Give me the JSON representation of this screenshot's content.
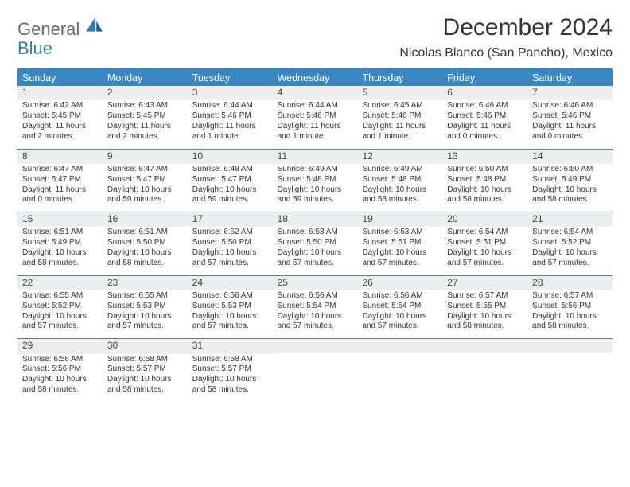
{
  "logo": {
    "word1": "General",
    "word2": "Blue"
  },
  "header": {
    "title": "December 2024",
    "location": "Nicolas Blanco (San Pancho), Mexico"
  },
  "colors": {
    "brand_blue": "#3a87c2",
    "brand_blue_dark": "#2f7ec0",
    "text_gray": "#333333",
    "logo_gray": "#6a6a6a",
    "row_gray": "#ededed",
    "white": "#ffffff"
  },
  "weekdays": [
    "Sunday",
    "Monday",
    "Tuesday",
    "Wednesday",
    "Thursday",
    "Friday",
    "Saturday"
  ],
  "weeks": [
    [
      {
        "n": "1",
        "sr": "Sunrise: 6:42 AM",
        "ss": "Sunset: 5:45 PM",
        "d1": "Daylight: 11 hours",
        "d2": "and 2 minutes."
      },
      {
        "n": "2",
        "sr": "Sunrise: 6:43 AM",
        "ss": "Sunset: 5:45 PM",
        "d1": "Daylight: 11 hours",
        "d2": "and 2 minutes."
      },
      {
        "n": "3",
        "sr": "Sunrise: 6:44 AM",
        "ss": "Sunset: 5:46 PM",
        "d1": "Daylight: 11 hours",
        "d2": "and 1 minute."
      },
      {
        "n": "4",
        "sr": "Sunrise: 6:44 AM",
        "ss": "Sunset: 5:46 PM",
        "d1": "Daylight: 11 hours",
        "d2": "and 1 minute."
      },
      {
        "n": "5",
        "sr": "Sunrise: 6:45 AM",
        "ss": "Sunset: 5:46 PM",
        "d1": "Daylight: 11 hours",
        "d2": "and 1 minute."
      },
      {
        "n": "6",
        "sr": "Sunrise: 6:46 AM",
        "ss": "Sunset: 5:46 PM",
        "d1": "Daylight: 11 hours",
        "d2": "and 0 minutes."
      },
      {
        "n": "7",
        "sr": "Sunrise: 6:46 AM",
        "ss": "Sunset: 5:46 PM",
        "d1": "Daylight: 11 hours",
        "d2": "and 0 minutes."
      }
    ],
    [
      {
        "n": "8",
        "sr": "Sunrise: 6:47 AM",
        "ss": "Sunset: 5:47 PM",
        "d1": "Daylight: 11 hours",
        "d2": "and 0 minutes."
      },
      {
        "n": "9",
        "sr": "Sunrise: 6:47 AM",
        "ss": "Sunset: 5:47 PM",
        "d1": "Daylight: 10 hours",
        "d2": "and 59 minutes."
      },
      {
        "n": "10",
        "sr": "Sunrise: 6:48 AM",
        "ss": "Sunset: 5:47 PM",
        "d1": "Daylight: 10 hours",
        "d2": "and 59 minutes."
      },
      {
        "n": "11",
        "sr": "Sunrise: 6:49 AM",
        "ss": "Sunset: 5:48 PM",
        "d1": "Daylight: 10 hours",
        "d2": "and 59 minutes."
      },
      {
        "n": "12",
        "sr": "Sunrise: 6:49 AM",
        "ss": "Sunset: 5:48 PM",
        "d1": "Daylight: 10 hours",
        "d2": "and 58 minutes."
      },
      {
        "n": "13",
        "sr": "Sunrise: 6:50 AM",
        "ss": "Sunset: 5:48 PM",
        "d1": "Daylight: 10 hours",
        "d2": "and 58 minutes."
      },
      {
        "n": "14",
        "sr": "Sunrise: 6:50 AM",
        "ss": "Sunset: 5:49 PM",
        "d1": "Daylight: 10 hours",
        "d2": "and 58 minutes."
      }
    ],
    [
      {
        "n": "15",
        "sr": "Sunrise: 6:51 AM",
        "ss": "Sunset: 5:49 PM",
        "d1": "Daylight: 10 hours",
        "d2": "and 58 minutes."
      },
      {
        "n": "16",
        "sr": "Sunrise: 6:51 AM",
        "ss": "Sunset: 5:50 PM",
        "d1": "Daylight: 10 hours",
        "d2": "and 58 minutes."
      },
      {
        "n": "17",
        "sr": "Sunrise: 6:52 AM",
        "ss": "Sunset: 5:50 PM",
        "d1": "Daylight: 10 hours",
        "d2": "and 57 minutes."
      },
      {
        "n": "18",
        "sr": "Sunrise: 6:53 AM",
        "ss": "Sunset: 5:50 PM",
        "d1": "Daylight: 10 hours",
        "d2": "and 57 minutes."
      },
      {
        "n": "19",
        "sr": "Sunrise: 6:53 AM",
        "ss": "Sunset: 5:51 PM",
        "d1": "Daylight: 10 hours",
        "d2": "and 57 minutes."
      },
      {
        "n": "20",
        "sr": "Sunrise: 6:54 AM",
        "ss": "Sunset: 5:51 PM",
        "d1": "Daylight: 10 hours",
        "d2": "and 57 minutes."
      },
      {
        "n": "21",
        "sr": "Sunrise: 6:54 AM",
        "ss": "Sunset: 5:52 PM",
        "d1": "Daylight: 10 hours",
        "d2": "and 57 minutes."
      }
    ],
    [
      {
        "n": "22",
        "sr": "Sunrise: 6:55 AM",
        "ss": "Sunset: 5:52 PM",
        "d1": "Daylight: 10 hours",
        "d2": "and 57 minutes."
      },
      {
        "n": "23",
        "sr": "Sunrise: 6:55 AM",
        "ss": "Sunset: 5:53 PM",
        "d1": "Daylight: 10 hours",
        "d2": "and 57 minutes."
      },
      {
        "n": "24",
        "sr": "Sunrise: 6:56 AM",
        "ss": "Sunset: 5:53 PM",
        "d1": "Daylight: 10 hours",
        "d2": "and 57 minutes."
      },
      {
        "n": "25",
        "sr": "Sunrise: 6:56 AM",
        "ss": "Sunset: 5:54 PM",
        "d1": "Daylight: 10 hours",
        "d2": "and 57 minutes."
      },
      {
        "n": "26",
        "sr": "Sunrise: 6:56 AM",
        "ss": "Sunset: 5:54 PM",
        "d1": "Daylight: 10 hours",
        "d2": "and 57 minutes."
      },
      {
        "n": "27",
        "sr": "Sunrise: 6:57 AM",
        "ss": "Sunset: 5:55 PM",
        "d1": "Daylight: 10 hours",
        "d2": "and 58 minutes."
      },
      {
        "n": "28",
        "sr": "Sunrise: 6:57 AM",
        "ss": "Sunset: 5:56 PM",
        "d1": "Daylight: 10 hours",
        "d2": "and 58 minutes."
      }
    ],
    [
      {
        "n": "29",
        "sr": "Sunrise: 6:58 AM",
        "ss": "Sunset: 5:56 PM",
        "d1": "Daylight: 10 hours",
        "d2": "and 58 minutes."
      },
      {
        "n": "30",
        "sr": "Sunrise: 6:58 AM",
        "ss": "Sunset: 5:57 PM",
        "d1": "Daylight: 10 hours",
        "d2": "and 58 minutes."
      },
      {
        "n": "31",
        "sr": "Sunrise: 6:58 AM",
        "ss": "Sunset: 5:57 PM",
        "d1": "Daylight: 10 hours",
        "d2": "and 58 minutes."
      },
      null,
      null,
      null,
      null
    ]
  ]
}
